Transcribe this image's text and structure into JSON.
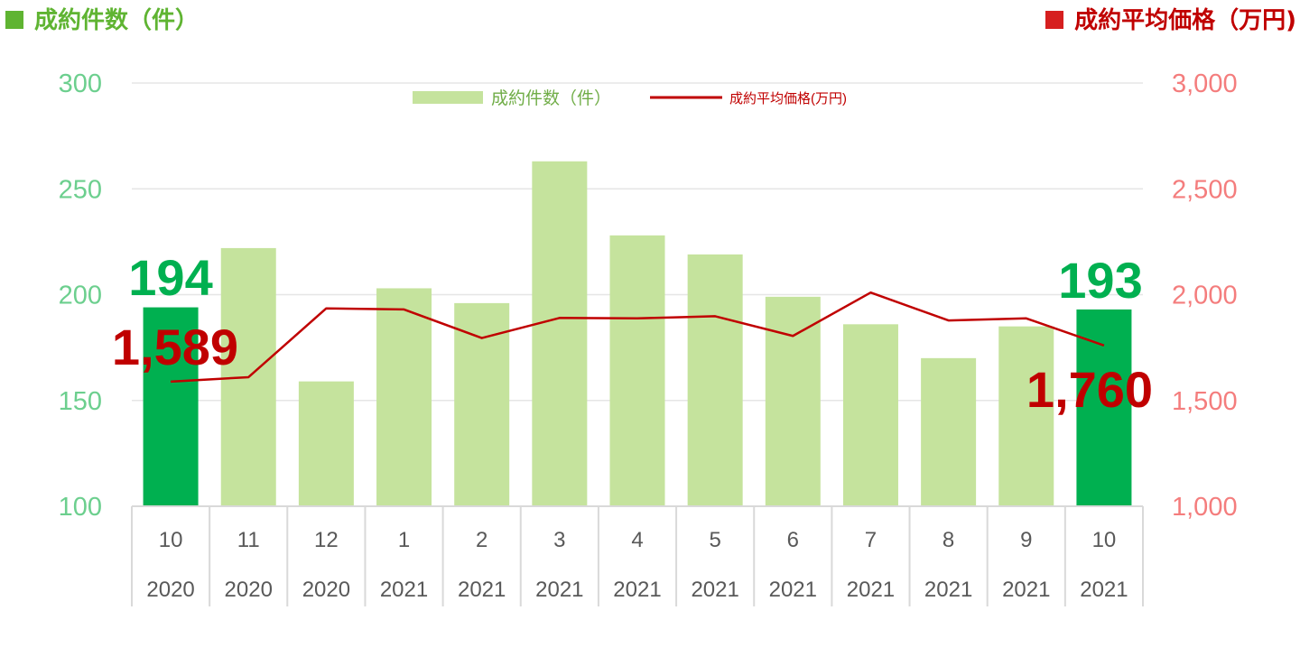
{
  "header": {
    "left_title": "成約件数（件）",
    "right_title": "成約平均価格（万円)",
    "left_color": "#5fb432",
    "right_color": "#c00000"
  },
  "chart_data": {
    "type": "bar",
    "categories": [
      {
        "month": "10",
        "year": "2020"
      },
      {
        "month": "11",
        "year": "2020"
      },
      {
        "month": "12",
        "year": "2020"
      },
      {
        "month": "1",
        "year": "2021"
      },
      {
        "month": "2",
        "year": "2021"
      },
      {
        "month": "3",
        "year": "2021"
      },
      {
        "month": "4",
        "year": "2021"
      },
      {
        "month": "5",
        "year": "2021"
      },
      {
        "month": "6",
        "year": "2021"
      },
      {
        "month": "7",
        "year": "2021"
      },
      {
        "month": "8",
        "year": "2021"
      },
      {
        "month": "9",
        "year": "2021"
      },
      {
        "month": "10",
        "year": "2021"
      }
    ],
    "series": [
      {
        "name": "成約件数（件）",
        "type": "bar",
        "axis": "left",
        "values": [
          194,
          222,
          159,
          203,
          196,
          263,
          228,
          219,
          199,
          186,
          170,
          185,
          193
        ],
        "highlight_indices": [
          0,
          12
        ],
        "color": "#c5e39d",
        "highlight_color": "#00b050"
      },
      {
        "name": "成約平均価格(万円)",
        "type": "line",
        "axis": "right",
        "values": [
          1589,
          1610,
          1935,
          1930,
          1795,
          1890,
          1888,
          1898,
          1805,
          2010,
          1878,
          1888,
          1760
        ],
        "color": "#c00000"
      }
    ],
    "y_left": {
      "min": 100,
      "max": 300,
      "ticks": [
        "100",
        "150",
        "200",
        "250",
        "300"
      ],
      "color": "#6ccf8e"
    },
    "y_right": {
      "min": 1000,
      "max": 3000,
      "ticks": [
        "1,000",
        "1,500",
        "2,000",
        "2,500",
        "3,000"
      ],
      "color": "#f47d7d"
    },
    "annotations": [
      {
        "text": "194",
        "color": "#00b050"
      },
      {
        "text": "1,589",
        "color": "#c00000"
      },
      {
        "text": "193",
        "color": "#00b050"
      },
      {
        "text": "1,760",
        "color": "#c00000"
      }
    ],
    "grid": true,
    "legend": "top-center"
  }
}
